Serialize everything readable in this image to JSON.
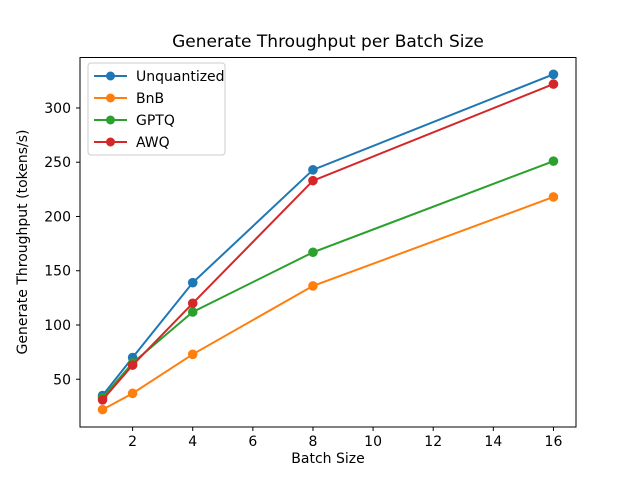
{
  "chart_data": {
    "type": "line",
    "title": "Generate Throughput per Batch Size",
    "xlabel": "Batch Size",
    "ylabel": "Generate Throughput (tokens/s)",
    "x": [
      1,
      2,
      4,
      8,
      16
    ],
    "series": [
      {
        "name": "Unquantized",
        "color": "#1f77b4",
        "values": [
          35,
          70,
          139,
          243,
          331
        ]
      },
      {
        "name": "BnB",
        "color": "#ff7f0e",
        "values": [
          22,
          37,
          73,
          136,
          218
        ]
      },
      {
        "name": "GPTQ",
        "color": "#2ca02c",
        "values": [
          33,
          65,
          112,
          167,
          251
        ]
      },
      {
        "name": "AWQ",
        "color": "#d62728",
        "values": [
          31,
          63,
          120,
          233,
          322
        ]
      }
    ],
    "xticks": [
      2,
      4,
      6,
      8,
      10,
      12,
      14,
      16
    ],
    "yticks": [
      50,
      100,
      150,
      200,
      250,
      300
    ],
    "xlim": [
      0.25,
      16.75
    ],
    "ylim": [
      6,
      346.5
    ],
    "grid": false,
    "marker": "o",
    "legend_position": "upper left",
    "colors": {
      "spine": "#000000",
      "background": "#ffffff",
      "legend_border": "#cccccc"
    }
  }
}
